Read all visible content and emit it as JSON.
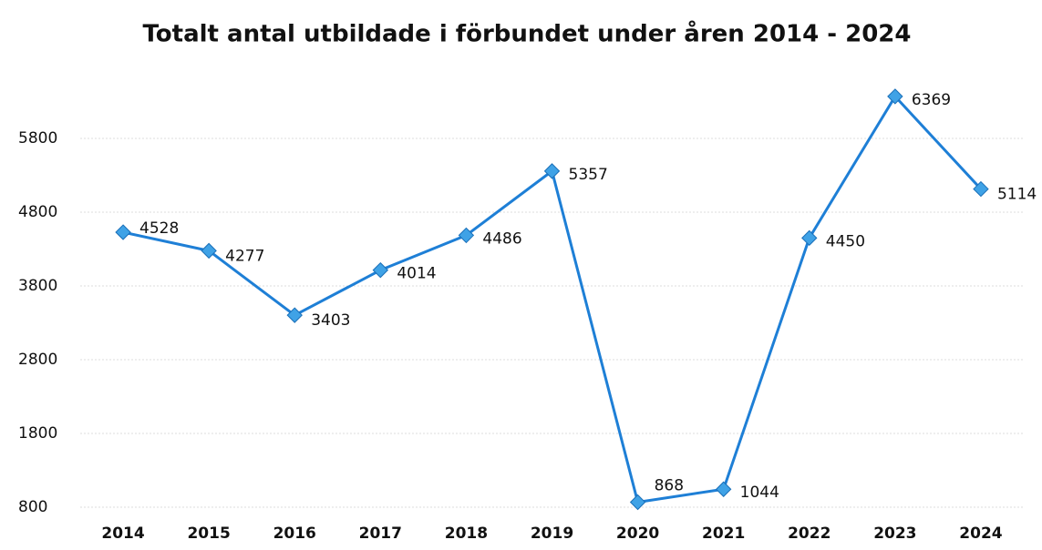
{
  "chart_data": {
    "type": "line",
    "title": "Totalt antal utbildade i förbundet under åren 2014 - 2024",
    "categories": [
      "2014",
      "2015",
      "2016",
      "2017",
      "2018",
      "2019",
      "2020",
      "2021",
      "2022",
      "2023",
      "2024"
    ],
    "values": [
      4528,
      4277,
      3403,
      4014,
      4486,
      5357,
      868,
      1044,
      4450,
      6369,
      5114
    ],
    "color": "#1e7fd6",
    "ylim": [
      800,
      6800
    ],
    "yticks": [
      800,
      1800,
      2800,
      3800,
      4800,
      5800
    ],
    "grid": true
  }
}
